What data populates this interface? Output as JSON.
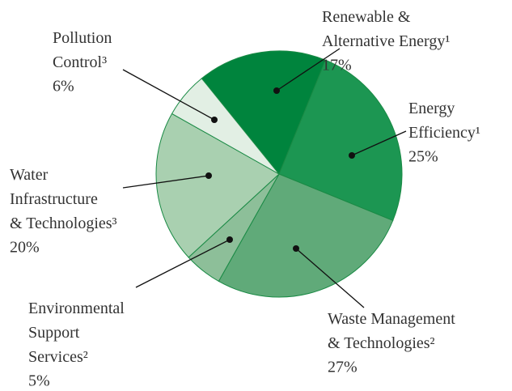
{
  "chart_data": {
    "type": "pie",
    "categories": [
      "Renewable & Alternative Energy¹",
      "Energy Efficiency¹",
      "Waste Management & Technologies²",
      "Environmental Support Services²",
      "Water Infrastructure & Technologies³",
      "Pollution Control³"
    ],
    "values": [
      17,
      25,
      27,
      5,
      20,
      6
    ],
    "value_labels": [
      "17%",
      "25%",
      "27%",
      "5%",
      "20%",
      "6%"
    ],
    "colors": [
      "#00843d",
      "#1c9652",
      "#60aa79",
      "#8dbf99",
      "#a9d0b0",
      "#e2efe4"
    ]
  }
}
